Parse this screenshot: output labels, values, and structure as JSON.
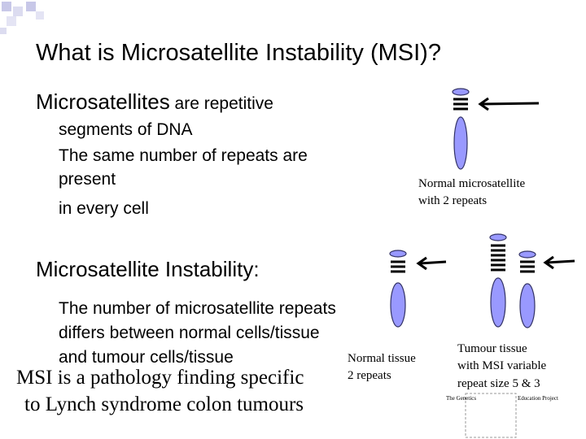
{
  "slide": {
    "title": "What is Microsatellite Instability (MSI)?",
    "intro": {
      "term": "Microsatellites",
      "rest": " are repetitive",
      "lines": [
        "segments of DNA",
        "The same number of repeats are",
        "present",
        "in every cell"
      ]
    },
    "normal_caption": [
      "Normal microsatellite",
      "with 2 repeats"
    ],
    "msi_heading": {
      "term": "Microsatellite Instability",
      "colon": ":"
    },
    "msi_lines": [
      "The number of microsatellite repeats",
      "differs between normal cells/tissue",
      "and tumour cells/tissue"
    ],
    "normal_tissue_caption": [
      "Normal tissue",
      "2 repeats"
    ],
    "conclusion": [
      "MSI is a pathology finding specific",
      "to Lynch syndrome colon tumours"
    ],
    "tumour_caption": [
      "Tumour tissue",
      "with MSI variable",
      "repeat size 5 & 3"
    ],
    "logo": [
      "The Genetics",
      "Education Project"
    ]
  }
}
